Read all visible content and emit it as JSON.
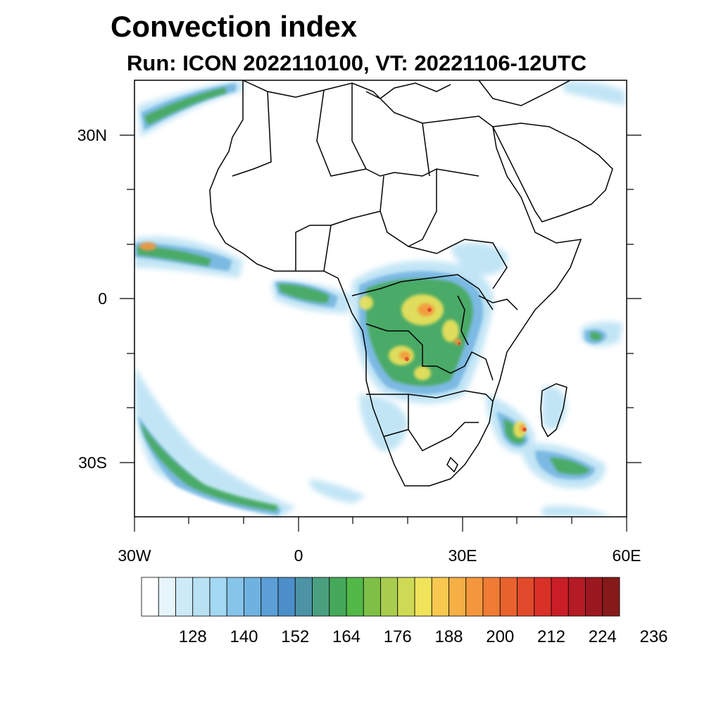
{
  "title": "Convection index",
  "subtitle": "Run: ICON 2022110100,  VT: 20221106-12UTC",
  "map": {
    "lon_range": [
      -30,
      60
    ],
    "lat_range": [
      -40,
      40
    ],
    "x_tick_labels": [
      "30W",
      "0",
      "30E",
      "60E"
    ],
    "y_tick_labels": [
      "30N",
      "0",
      "30S"
    ]
  },
  "colorbar": {
    "colors": [
      "#ffffff",
      "#e6f4fb",
      "#cdeaf7",
      "#b8e1f4",
      "#a2d8f2",
      "#86c4ea",
      "#6fb2e0",
      "#5b9fd6",
      "#4c8fc8",
      "#4b93a5",
      "#4aa07e",
      "#45a95a",
      "#52b848",
      "#7ec047",
      "#a8cc4d",
      "#cfda54",
      "#f0e35a",
      "#f8c850",
      "#f4af45",
      "#f4963d",
      "#f07b35",
      "#e8622e",
      "#e04a2a",
      "#d93028",
      "#c91e27",
      "#b41b24",
      "#9c1820",
      "#861a1a"
    ],
    "tick_labels": [
      "128",
      "140",
      "152",
      "164",
      "176",
      "188",
      "200",
      "212",
      "224",
      "236"
    ]
  }
}
